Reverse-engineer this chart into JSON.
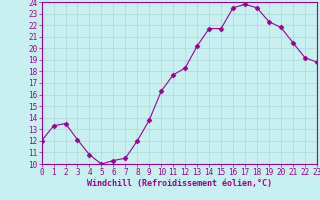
{
  "x": [
    0,
    1,
    2,
    3,
    4,
    5,
    6,
    7,
    8,
    9,
    10,
    11,
    12,
    13,
    14,
    15,
    16,
    17,
    18,
    19,
    20,
    21,
    22,
    23
  ],
  "y": [
    12.0,
    13.3,
    13.5,
    12.1,
    10.8,
    10.0,
    10.3,
    10.5,
    12.0,
    13.8,
    16.3,
    17.7,
    18.3,
    20.2,
    21.7,
    21.7,
    23.5,
    23.8,
    23.5,
    22.3,
    21.8,
    20.5,
    19.2,
    18.8
  ],
  "line_color": "#990099",
  "marker": "D",
  "marker_size": 2.5,
  "bg_color": "#c8f0f0",
  "grid_color": "#aad8d8",
  "xlabel": "Windchill (Refroidissement éolien,°C)",
  "ylim": [
    10,
    24
  ],
  "xlim": [
    0,
    23
  ],
  "yticks": [
    10,
    11,
    12,
    13,
    14,
    15,
    16,
    17,
    18,
    19,
    20,
    21,
    22,
    23,
    24
  ],
  "xticks": [
    0,
    1,
    2,
    3,
    4,
    5,
    6,
    7,
    8,
    9,
    10,
    11,
    12,
    13,
    14,
    15,
    16,
    17,
    18,
    19,
    20,
    21,
    22,
    23
  ],
  "tick_fontsize": 5.5,
  "xlabel_fontsize": 6.0,
  "tick_color": "#990099",
  "label_color": "#990099",
  "spine_color": "#990099"
}
